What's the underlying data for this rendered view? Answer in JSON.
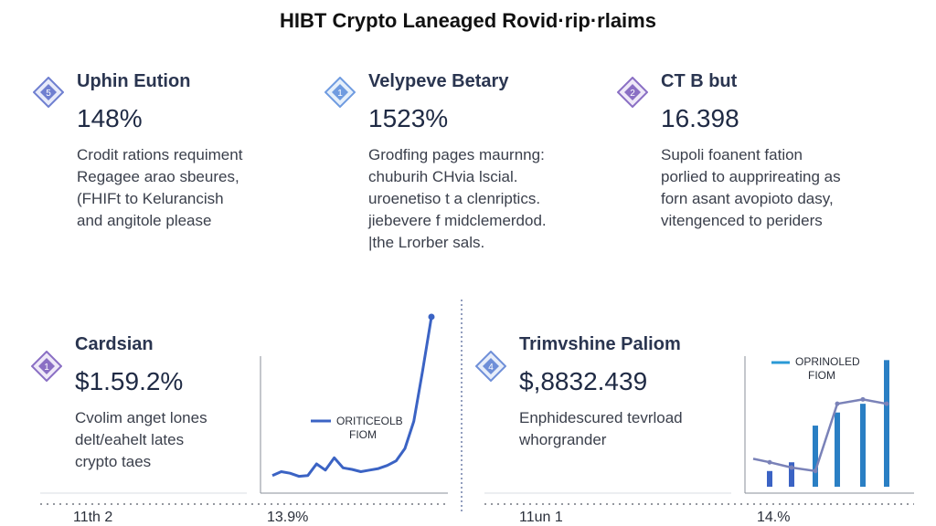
{
  "title": "HIBT Crypto Laneaged Rovid·rip·rlaims",
  "colors": {
    "accent_blue": "#3b63c4",
    "accent_cyan": "#2a9ad6",
    "icon_purple": "#7b6bbd",
    "icon_blue": "#6f8fd8",
    "grid": "#d9dce3"
  },
  "cards": [
    {
      "icon": "diamond-icon",
      "icon_color": "#6f7fd0",
      "icon_text": "5",
      "heading": "Uphin Eution",
      "value": "148%",
      "lines": [
        "Crodit rations requiment",
        "Regagee arao sbeures,",
        "(FHIFt to Kelurancish",
        "and angitole please"
      ]
    },
    {
      "icon": "diamond-icon",
      "icon_color": "#6f9be0",
      "icon_text": "1",
      "heading": "Velypeve Betary",
      "value": "1523%",
      "lines": [
        "Grodfing pages maurnng:",
        "chuburih CHvia lscial.",
        "uroenetiso t a clenriptics.",
        "jiebevere f midclemerdod.",
        "|the Lrorber sals."
      ]
    },
    {
      "icon": "diamond-icon",
      "icon_color": "#8a6fc4",
      "icon_text": "2",
      "heading": "CT B but",
      "value": "16.398",
      "lines": [
        "Supoli foanent fation",
        "porlied to aupprireating as",
        "forn asant avopioto dasy,",
        "vitengenced to periders"
      ]
    },
    {
      "icon": "diamond-icon",
      "icon_color": "#8a6fc4",
      "icon_text": "1",
      "heading": "Cardsian",
      "value": "$1.59.2%",
      "lines": [
        "Cvolim anget lones",
        "delt/eahelt lates",
        "crypto taes"
      ]
    },
    {
      "icon": "diamond-icon",
      "icon_color": "#6f8fd8",
      "icon_text": "4",
      "heading": "Trimvshine Paliom",
      "value": "$,8832.439",
      "lines": [
        "Enphidescured tevrload",
        "whorgrander"
      ]
    }
  ],
  "axis_labels": {
    "left_a": "11th 2",
    "left_b": "13.9%",
    "right_a": "11un 1",
    "right_b": "14.%"
  },
  "chart_data": [
    {
      "type": "line",
      "legend": [
        "ORITICEOLB",
        "FIOM"
      ],
      "x": [
        0,
        1,
        2,
        3,
        4,
        5,
        6,
        7,
        8,
        9,
        10,
        11,
        12,
        13,
        14,
        15,
        16,
        17,
        18
      ],
      "series": [
        {
          "values": [
            5,
            10,
            8,
            4,
            5,
            20,
            12,
            28,
            15,
            13,
            10,
            12,
            14,
            18,
            24,
            40,
            75,
            140,
            210
          ]
        }
      ],
      "ylim": [
        0,
        230
      ]
    },
    {
      "type": "bar",
      "legend": [
        "OPRINOLED",
        "FIOM"
      ],
      "categories": [
        "1",
        "2",
        "3",
        "4",
        "5",
        "6"
      ],
      "values": [
        18,
        28,
        70,
        85,
        95,
        145
      ],
      "line_values": [
        28,
        22,
        18,
        95,
        100,
        95
      ],
      "ylim": [
        0,
        160
      ]
    }
  ]
}
